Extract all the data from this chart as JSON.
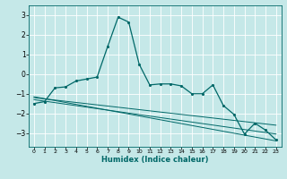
{
  "xlabel": "Humidex (Indice chaleur)",
  "bg_color": "#c5e8e8",
  "grid_color": "#ffffff",
  "line_color": "#006868",
  "xlim": [
    -0.5,
    23.5
  ],
  "ylim": [
    -3.7,
    3.5
  ],
  "yticks": [
    -3,
    -2,
    -1,
    0,
    1,
    2,
    3
  ],
  "xticks": [
    0,
    1,
    2,
    3,
    4,
    5,
    6,
    7,
    8,
    9,
    10,
    11,
    12,
    13,
    14,
    15,
    16,
    17,
    18,
    19,
    20,
    21,
    22,
    23
  ],
  "main_line_x": [
    0,
    1,
    2,
    3,
    4,
    5,
    6,
    7,
    8,
    9,
    10,
    11,
    12,
    13,
    14,
    15,
    16,
    17,
    18,
    19,
    20,
    21,
    22,
    23
  ],
  "main_line_y": [
    -1.5,
    -1.4,
    -0.7,
    -0.65,
    -0.35,
    -0.25,
    -0.15,
    1.4,
    2.9,
    2.65,
    0.5,
    -0.55,
    -0.5,
    -0.5,
    -0.6,
    -1.0,
    -1.0,
    -0.55,
    -1.6,
    -2.05,
    -3.05,
    -2.5,
    -2.85,
    -3.35
  ],
  "trend_lines": [
    {
      "x": [
        0,
        23
      ],
      "y": [
        -1.3,
        -3.05
      ]
    },
    {
      "x": [
        0,
        23
      ],
      "y": [
        -1.2,
        -2.6
      ]
    },
    {
      "x": [
        0,
        23
      ],
      "y": [
        -1.15,
        -3.4
      ]
    }
  ]
}
